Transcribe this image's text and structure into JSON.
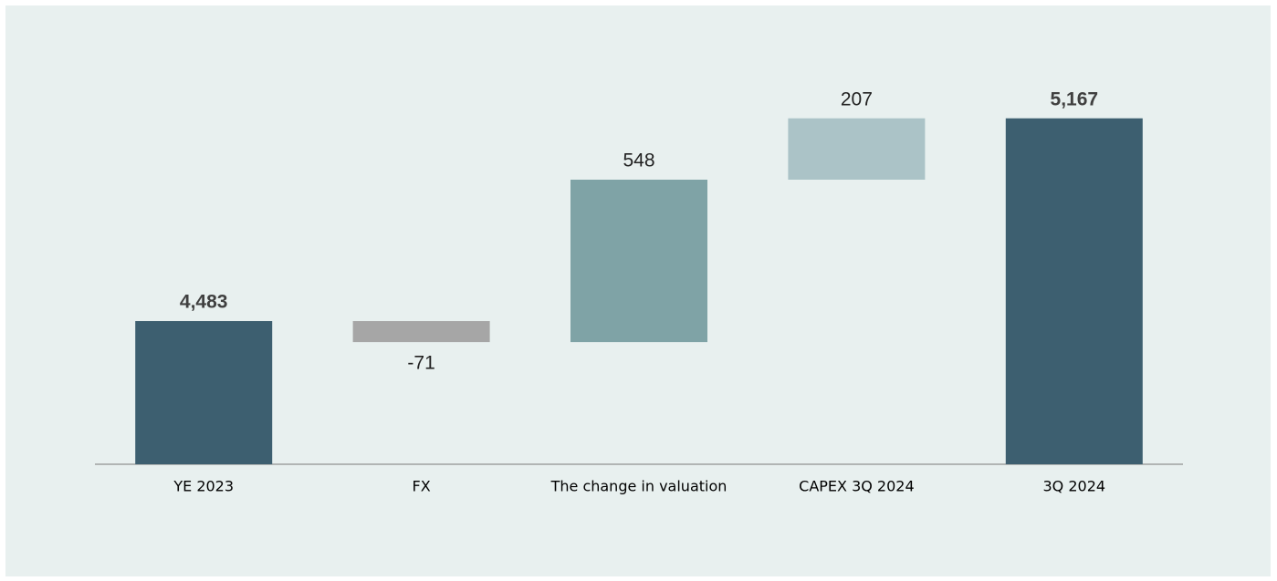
{
  "chart_data": {
    "type": "waterfall",
    "categories": [
      "YE 2023",
      "FX",
      "The change in valuation",
      "CAPEX 3Q 2024",
      "3Q 2024"
    ],
    "values": [
      4483,
      -71,
      548,
      207,
      5167
    ],
    "value_labels": [
      "4,483",
      "-71",
      "548",
      "207",
      "5,167"
    ],
    "colors": [
      "#3d5f70",
      "#a6a6a6",
      "#7fa3a6",
      "#abc3c7",
      "#3d5f70"
    ],
    "ylim": [
      4000,
      5400
    ]
  }
}
